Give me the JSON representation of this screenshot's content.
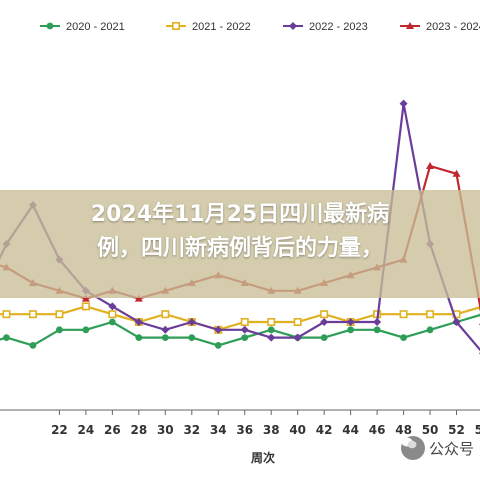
{
  "chart_data": {
    "type": "line",
    "xlabel": "周次",
    "ylabel": "",
    "x": [
      16,
      18,
      20,
      22,
      24,
      26,
      28,
      30,
      32,
      34,
      36,
      38,
      40,
      42,
      44,
      46,
      48,
      50,
      52,
      54
    ],
    "x_tick_labels": [
      "22",
      "24",
      "26",
      "28",
      "30",
      "32",
      "34",
      "36",
      "38",
      "40",
      "42",
      "44",
      "46",
      "48",
      "50",
      "52",
      "54"
    ],
    "legend_position": "top",
    "series": [
      {
        "name": "2020 - 2021",
        "color": "#2e9e57",
        "marker": "circle",
        "values": [
          57,
          58,
          57,
          59,
          59,
          60,
          58,
          58,
          58,
          57,
          58,
          59,
          58,
          58,
          59,
          59,
          58,
          59,
          60,
          61
        ]
      },
      {
        "name": "2021 - 2022",
        "color": "#e0b020",
        "marker": "square",
        "values": [
          61,
          61,
          61,
          61,
          62,
          61,
          60,
          61,
          60,
          59,
          60,
          60,
          60,
          61,
          60,
          61,
          61,
          61,
          61,
          62
        ]
      },
      {
        "name": "2022 - 2023",
        "color": "#6a3d9a",
        "marker": "diamond",
        "values": [
          63,
          70,
          75,
          68,
          64,
          62,
          60,
          59,
          60,
          59,
          59,
          58,
          58,
          60,
          60,
          60,
          88,
          70,
          60,
          56
        ]
      },
      {
        "name": "2023 - 2024",
        "color": "#c0282d",
        "marker": "triangle",
        "values": [
          68,
          67,
          65,
          64,
          63,
          64,
          63,
          64,
          65,
          66,
          65,
          64,
          64,
          65,
          66,
          67,
          68,
          80,
          79,
          60
        ]
      }
    ]
  },
  "headline": {
    "line1": "2024年11月25日四川最新病",
    "line2": "例，四川新病例背后的力量，"
  },
  "watermark": {
    "text": "公众号",
    "icon": "wechat-icon"
  }
}
